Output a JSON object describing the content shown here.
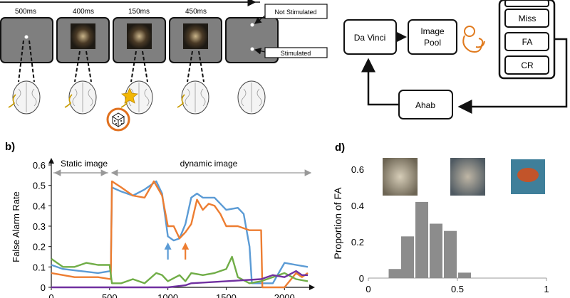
{
  "panel_a": {
    "durations": [
      "500ms",
      "400ms",
      "150ms",
      "450ms"
    ],
    "labels": {
      "not_stimulated": "Not Stimulated",
      "stimulated": "Stimulated"
    }
  },
  "panel_c": {
    "boxes": {
      "da_vinci": "Da Vinci",
      "image_pool_line1": "Image",
      "image_pool_line2": "Pool",
      "ahab": "Ahab",
      "miss": "Miss",
      "fa": "FA",
      "cr": "CR"
    }
  },
  "panel_b": {
    "letter": "b)",
    "phases": {
      "static": "Static image",
      "dynamic": "dynamic image"
    }
  },
  "panel_d": {
    "letter": "d)"
  },
  "colors": {
    "blue": "#5b9bd5",
    "orange": "#ed7d31",
    "green": "#70ad47",
    "purple": "#7030a0",
    "box_gray": "#7f7f7f",
    "bar_gray": "#8c8c8c"
  },
  "chart_data": [
    {
      "type": "line",
      "ylabel": "False Alarm Rate",
      "xlabel": "",
      "x_ticks": [
        0,
        500,
        1000,
        1500,
        2000
      ],
      "y_ticks": [
        0,
        0.1,
        0.2,
        0.3,
        0.4,
        0.5,
        0.6
      ],
      "xlim": [
        0,
        2200
      ],
      "ylim": [
        0,
        0.6
      ],
      "series": [
        {
          "color": "blue",
          "points": [
            [
              0,
              0.11
            ],
            [
              100,
              0.09
            ],
            [
              250,
              0.08
            ],
            [
              400,
              0.07
            ],
            [
              510,
              0.08
            ],
            [
              520,
              0.49
            ],
            [
              600,
              0.47
            ],
            [
              700,
              0.45
            ],
            [
              800,
              0.48
            ],
            [
              900,
              0.52
            ],
            [
              950,
              0.46
            ],
            [
              1000,
              0.25
            ],
            [
              1050,
              0.23
            ],
            [
              1100,
              0.24
            ],
            [
              1150,
              0.31
            ],
            [
              1200,
              0.44
            ],
            [
              1250,
              0.46
            ],
            [
              1300,
              0.44
            ],
            [
              1400,
              0.44
            ],
            [
              1500,
              0.38
            ],
            [
              1600,
              0.39
            ],
            [
              1650,
              0.36
            ],
            [
              1700,
              0.2
            ],
            [
              1720,
              0.02
            ],
            [
              1800,
              0.02
            ],
            [
              1900,
              0.02
            ],
            [
              2000,
              0.12
            ],
            [
              2100,
              0.11
            ],
            [
              2200,
              0.1
            ]
          ]
        },
        {
          "color": "orange",
          "points": [
            [
              0,
              0.07
            ],
            [
              100,
              0.06
            ],
            [
              200,
              0.05
            ],
            [
              300,
              0.05
            ],
            [
              400,
              0.05
            ],
            [
              510,
              0.04
            ],
            [
              520,
              0.52
            ],
            [
              600,
              0.49
            ],
            [
              700,
              0.45
            ],
            [
              800,
              0.44
            ],
            [
              880,
              0.52
            ],
            [
              950,
              0.45
            ],
            [
              1000,
              0.3
            ],
            [
              1050,
              0.3
            ],
            [
              1100,
              0.24
            ],
            [
              1150,
              0.27
            ],
            [
              1200,
              0.31
            ],
            [
              1250,
              0.43
            ],
            [
              1300,
              0.38
            ],
            [
              1350,
              0.41
            ],
            [
              1400,
              0.4
            ],
            [
              1450,
              0.36
            ],
            [
              1500,
              0.3
            ],
            [
              1600,
              0.3
            ],
            [
              1700,
              0.28
            ],
            [
              1800,
              0.28
            ],
            [
              1810,
              0.0
            ],
            [
              2000,
              0.0
            ],
            [
              2100,
              0.07
            ],
            [
              2150,
              0.05
            ],
            [
              2200,
              0.07
            ]
          ]
        },
        {
          "color": "green",
          "points": [
            [
              0,
              0.14
            ],
            [
              50,
              0.12
            ],
            [
              100,
              0.1
            ],
            [
              200,
              0.1
            ],
            [
              300,
              0.12
            ],
            [
              400,
              0.11
            ],
            [
              500,
              0.11
            ],
            [
              520,
              0.02
            ],
            [
              600,
              0.02
            ],
            [
              700,
              0.04
            ],
            [
              800,
              0.02
            ],
            [
              900,
              0.07
            ],
            [
              950,
              0.06
            ],
            [
              1000,
              0.03
            ],
            [
              1100,
              0.06
            ],
            [
              1150,
              0.03
            ],
            [
              1200,
              0.07
            ],
            [
              1300,
              0.06
            ],
            [
              1400,
              0.07
            ],
            [
              1500,
              0.09
            ],
            [
              1550,
              0.15
            ],
            [
              1600,
              0.05
            ],
            [
              1700,
              0.02
            ],
            [
              1800,
              0.03
            ],
            [
              1900,
              0.05
            ],
            [
              2000,
              0.07
            ],
            [
              2100,
              0.04
            ],
            [
              2200,
              0.03
            ]
          ]
        },
        {
          "color": "purple",
          "points": [
            [
              0,
              0.0
            ],
            [
              500,
              0.0
            ],
            [
              1000,
              0.0
            ],
            [
              1150,
              0.01
            ],
            [
              1200,
              0.02
            ],
            [
              1500,
              0.03
            ],
            [
              1800,
              0.04
            ],
            [
              1900,
              0.06
            ],
            [
              2000,
              0.05
            ],
            [
              2100,
              0.08
            ],
            [
              2150,
              0.06
            ],
            [
              2200,
              0.06
            ]
          ]
        }
      ],
      "annotations": [
        {
          "kind": "arrow",
          "color": "blue",
          "x": 1000,
          "y_tip": 0.22
        },
        {
          "kind": "arrow",
          "color": "orange",
          "x": 1150,
          "y_tip": 0.22
        }
      ]
    },
    {
      "type": "bar",
      "ylabel": "Proportion of FA",
      "xlabel": "",
      "x_ticks": [
        0,
        0.5,
        1
      ],
      "y_ticks": [
        0,
        0.2,
        0.4,
        0.6
      ],
      "xlim": [
        0,
        1
      ],
      "ylim": [
        0,
        0.6
      ],
      "x": [
        0.15,
        0.22,
        0.3,
        0.38,
        0.46,
        0.54
      ],
      "values": [
        0.05,
        0.23,
        0.42,
        0.3,
        0.26,
        0.03
      ]
    }
  ]
}
